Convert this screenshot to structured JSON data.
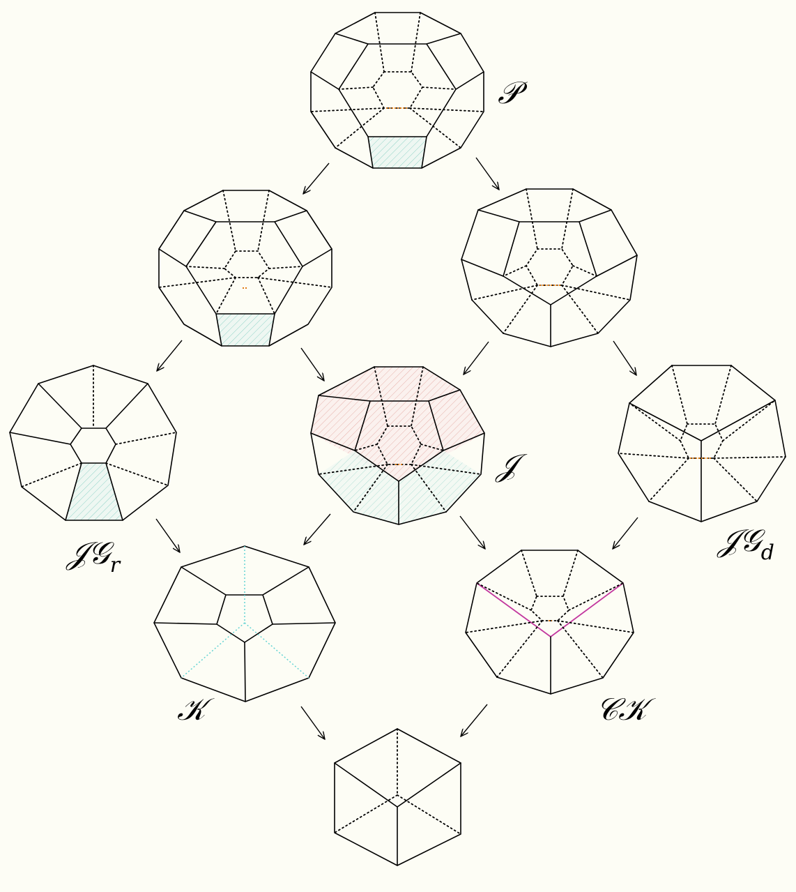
{
  "labels": {
    "P": "𝒫",
    "J": "𝒥",
    "JG": "𝒥𝒢",
    "JGr_sub": "r",
    "JGd_sub": "d",
    "K": "𝒦",
    "CK": "𝒞𝒦"
  },
  "colors": {
    "background": "#fdfdf5",
    "hidden_orange": "#e07a10",
    "hatch_cyan": "#62d3d3",
    "hatch_red": "#e8a0a0",
    "edge_magenta": "#c2369e"
  }
}
